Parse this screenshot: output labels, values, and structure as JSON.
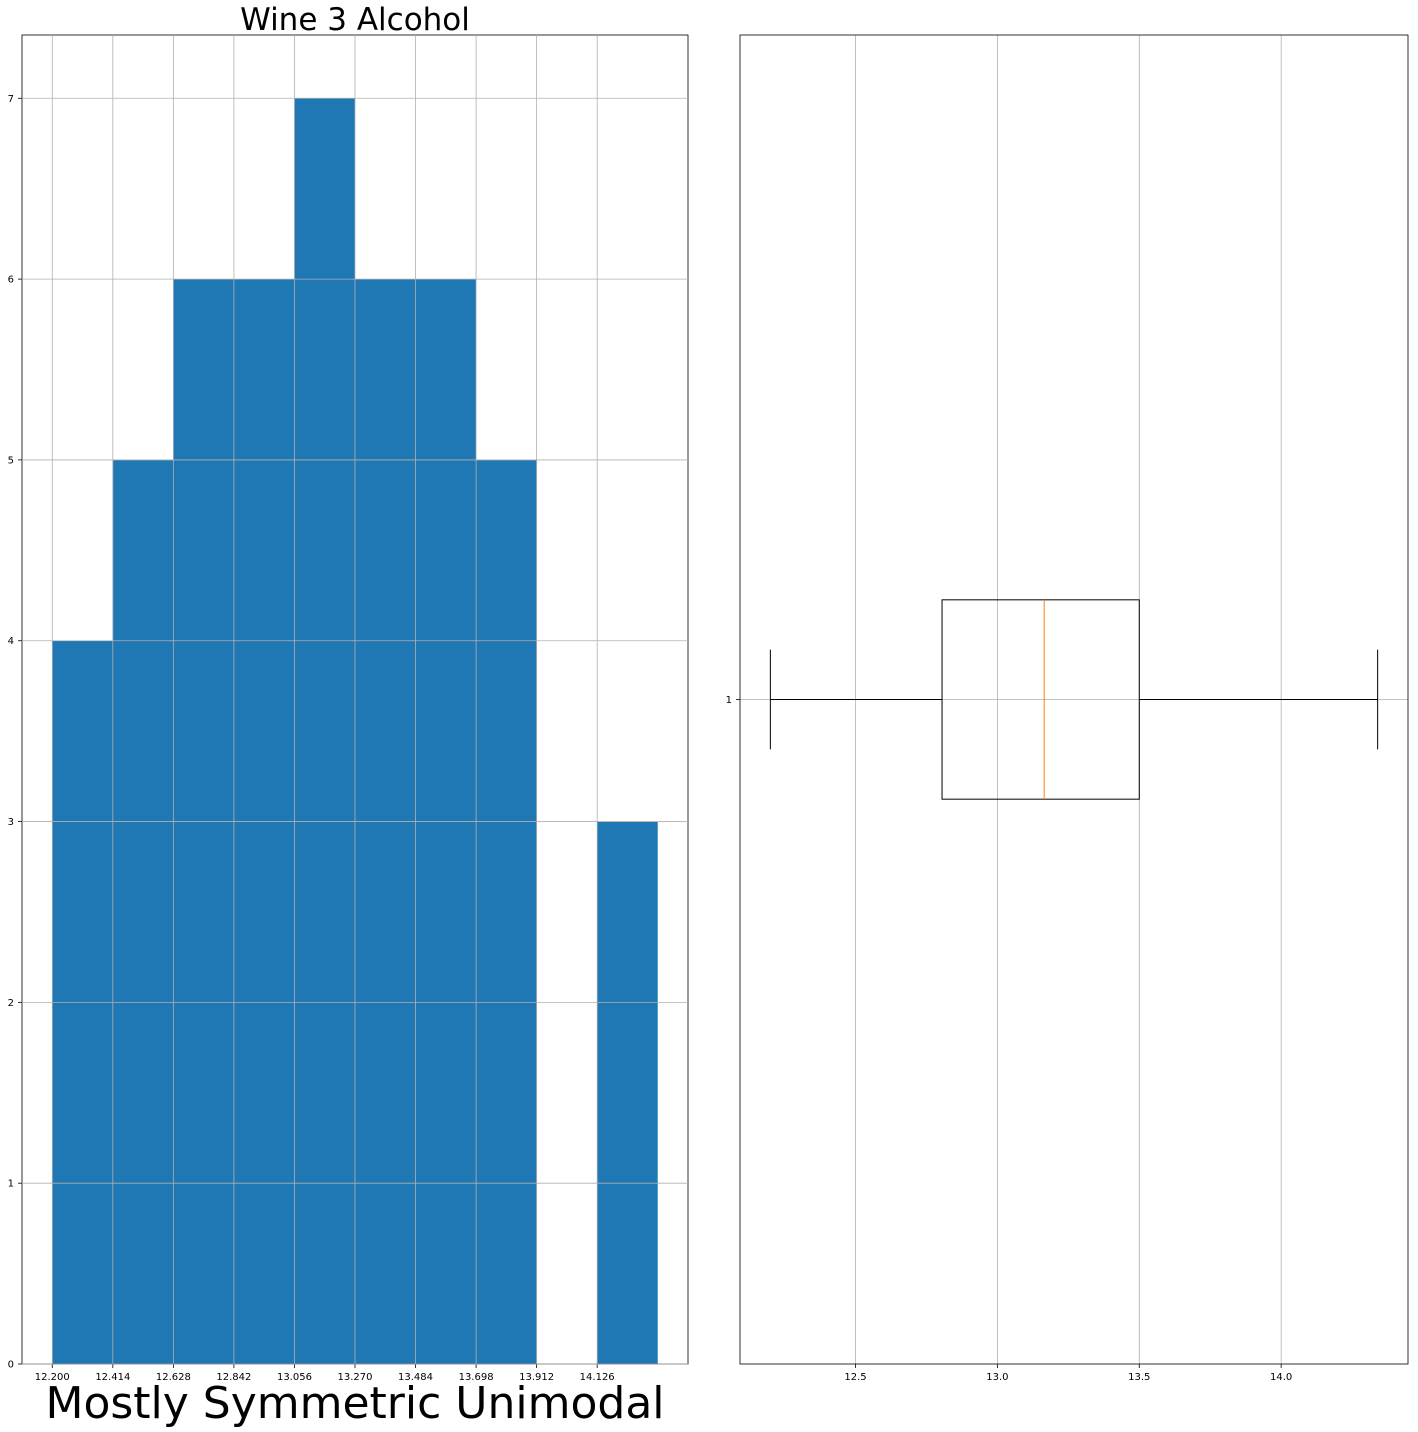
{
  "chart_data": [
    {
      "type": "histogram",
      "title": "Wine 3 Alcohol",
      "xlabel": "Mostly Symmetric Unimodal",
      "ylabel": "",
      "bin_edges": [
        12.2,
        12.414,
        12.628,
        12.842,
        13.056,
        13.27,
        13.484,
        13.698,
        13.912,
        14.126,
        14.34
      ],
      "counts": [
        4,
        5,
        6,
        6,
        7,
        6,
        6,
        5,
        0,
        3
      ],
      "x_ticks": [
        "12.200",
        "12.414",
        "12.628",
        "12.842",
        "13.056",
        "13.270",
        "13.484",
        "13.698",
        "13.912",
        "14.126"
      ],
      "y_ticks": [
        "0",
        "1",
        "2",
        "3",
        "4",
        "5",
        "6",
        "7"
      ],
      "xlim": [
        12.093,
        14.447
      ],
      "ylim": [
        0,
        7.35
      ],
      "grid": true,
      "color": "#1f77b4"
    },
    {
      "type": "boxplot",
      "orientation": "horizontal",
      "title": "",
      "xlabel": "",
      "ylabel": "",
      "category_label": "1",
      "stats": {
        "whisker_low": 12.2,
        "q1": 12.805,
        "median": 13.165,
        "q3": 13.5,
        "whisker_high": 14.34
      },
      "x_ticks": [
        "12.5",
        "13.0",
        "13.5",
        "14.0"
      ],
      "xlim": [
        12.093,
        14.447
      ],
      "grid": true,
      "median_color": "#ff7f0e"
    }
  ]
}
